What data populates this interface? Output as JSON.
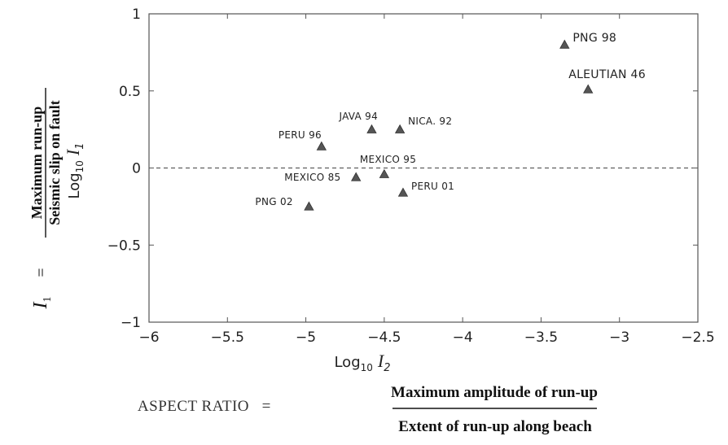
{
  "chart_data": {
    "type": "scatter",
    "xlim": [
      -6,
      -2.5
    ],
    "ylim": [
      -1,
      1
    ],
    "x_ticks": [
      -6,
      -5.5,
      -5,
      -4.5,
      -4,
      -3.5,
      -3,
      -2.5
    ],
    "x_tick_labels": [
      "−6",
      "−5.5",
      "−5",
      "−4.5",
      "−4",
      "−3.5",
      "−3",
      "−2.5"
    ],
    "y_ticks": [
      -1,
      -0.5,
      0,
      0.5,
      1
    ],
    "y_tick_labels": [
      "−1",
      "−0.5",
      "0",
      "0.5",
      "1"
    ],
    "grid": false,
    "reference_line": {
      "y": 0,
      "style": "dashed"
    },
    "marker": "triangle",
    "marker_color": "#555555",
    "points": [
      {
        "label": "PNG 98",
        "x": -3.35,
        "y": 0.8
      },
      {
        "label": "ALEUTIAN 46",
        "x": -3.2,
        "y": 0.51
      },
      {
        "label": "JAVA 94",
        "x": -4.58,
        "y": 0.25
      },
      {
        "label": "NICA. 92",
        "x": -4.4,
        "y": 0.25
      },
      {
        "label": "PERU 96",
        "x": -4.9,
        "y": 0.14
      },
      {
        "label": "MEXICO 95",
        "x": -4.5,
        "y": -0.04
      },
      {
        "label": "MEXICO 85",
        "x": -4.68,
        "y": -0.06
      },
      {
        "label": "PERU 01",
        "x": -4.38,
        "y": -0.16
      },
      {
        "label": "PNG 02",
        "x": -4.98,
        "y": -0.25
      }
    ],
    "xlabel": {
      "main": "Log",
      "sub": "10",
      "var": "I",
      "var_sub": "2"
    },
    "ylabel": {
      "lhs_var": "I",
      "lhs_sub": "1",
      "equals": "=",
      "numerator": "Maximum run-up",
      "denominator": "Seismic slip on fault",
      "log_main": "Log",
      "log_sub": "10",
      "log_var": "I",
      "log_var_sub": "1"
    },
    "bottom_formula": {
      "lhs": "ASPECT RATIO",
      "equals": "=",
      "numerator": "Maximum amplitude of run-up",
      "denominator": "Extent of run-up along beach"
    }
  }
}
